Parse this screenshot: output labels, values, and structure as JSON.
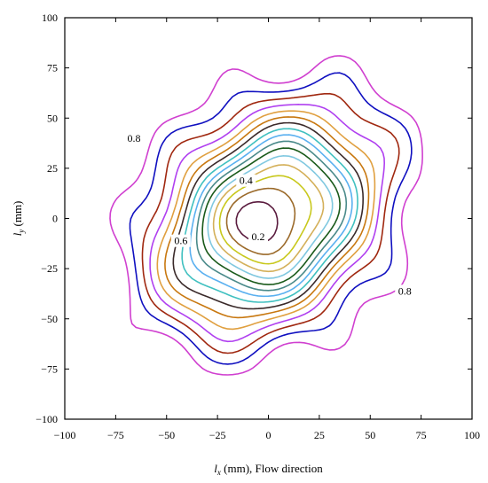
{
  "chart_data": {
    "type": "contour",
    "title": "",
    "xlabel": {
      "italic": "l",
      "sub": "x",
      "rest": " (mm), Flow direction"
    },
    "ylabel": {
      "italic": "l",
      "sub": "y",
      "rest": " (mm)"
    },
    "xlim": [
      -100,
      100
    ],
    "ylim": [
      -100,
      100
    ],
    "xticks": [
      "−100",
      "−75",
      "−50",
      "−25",
      "0",
      "25",
      "50",
      "75",
      "100"
    ],
    "yticks": [
      "100",
      "75",
      "50",
      "25",
      "0",
      "−25",
      "−50",
      "−75",
      "−100"
    ],
    "grid": false,
    "levels": [
      0.1,
      0.15,
      0.2,
      0.25,
      0.3,
      0.35,
      0.4,
      0.45,
      0.5,
      0.55,
      0.6,
      0.65,
      0.7,
      0.75,
      0.8,
      0.85,
      0.9
    ],
    "level_colors": [
      "#d01c8b",
      "#5a1b3e",
      "#9b6a2a",
      "#c8c81c",
      "#d4b05a",
      "#80c8e0",
      "#1a5a1a",
      "#4a8a8a",
      "#5ab0f0",
      "#40c0c0",
      "#3a2a2a",
      "#c87810",
      "#e0a040",
      "#b040f0",
      "#a02810",
      "#1010c0",
      "#d040d0"
    ],
    "contour_labels": [
      {
        "text": "0.2",
        "x": -5,
        "y": -10
      },
      {
        "text": "0.4",
        "x": -11,
        "y": 18
      },
      {
        "text": "0.6",
        "x": -43,
        "y": -12
      },
      {
        "text": "0.8",
        "x": -66,
        "y": 39
      },
      {
        "text": "0.8",
        "x": 67,
        "y": -37
      }
    ]
  }
}
